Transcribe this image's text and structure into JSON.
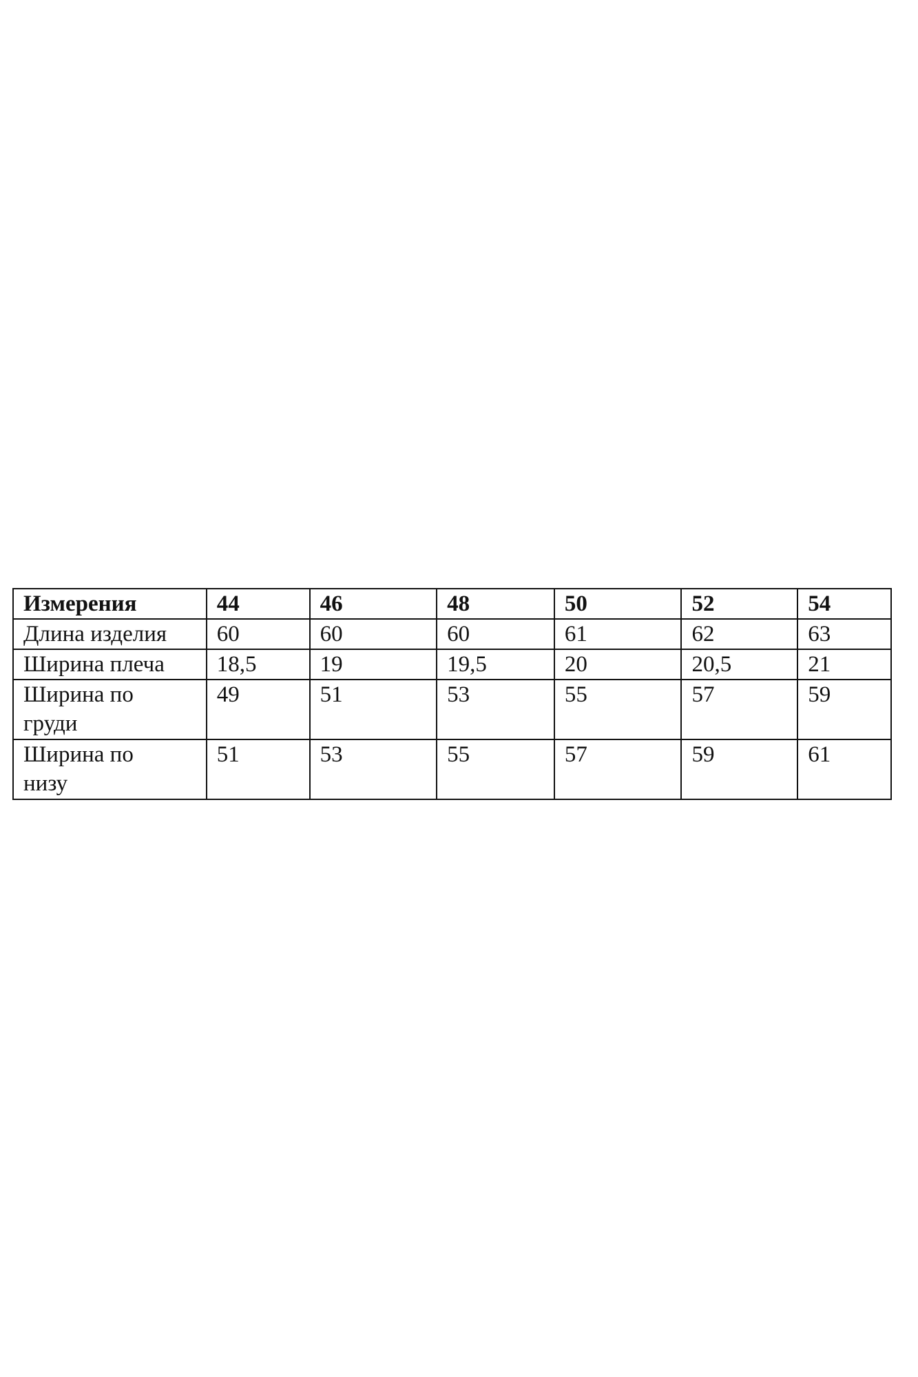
{
  "size_table": {
    "header": [
      "Измерения",
      "44",
      "46",
      "48",
      "50",
      "52",
      "54"
    ],
    "rows": [
      [
        "Длина изделия",
        "60",
        "60",
        "60",
        "61",
        "62",
        "63"
      ],
      [
        "Ширина плеча",
        "18,5",
        "19",
        "19,5",
        "20",
        "20,5",
        "21"
      ],
      [
        "Ширина по груди",
        "49",
        "51",
        "53",
        "55",
        "57",
        "59"
      ],
      [
        "Ширина по низу",
        "51",
        "53",
        "55",
        "57",
        "59",
        "61"
      ]
    ]
  }
}
